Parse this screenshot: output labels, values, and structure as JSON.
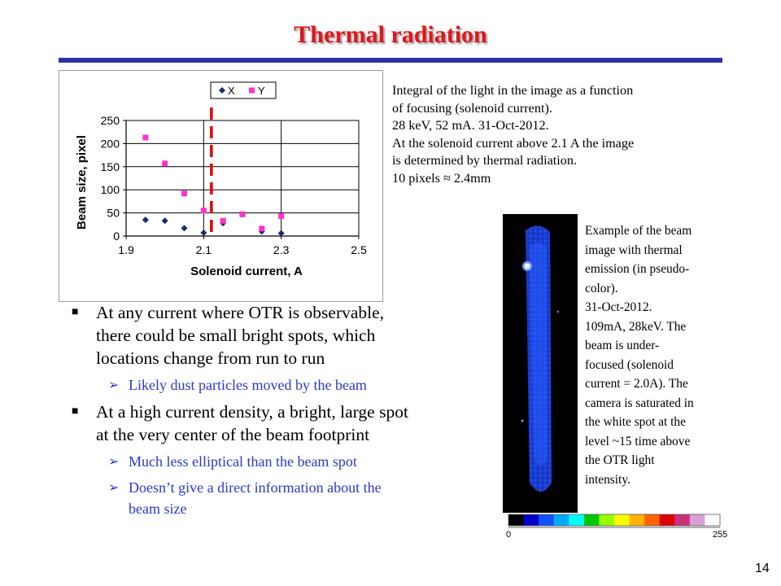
{
  "title": "Thermal radiation",
  "page_number": "14",
  "caption_chart": [
    "Integral of the light in the image as a function",
    "of focusing (solenoid current).",
    "28 keV, 52 mA. 31-Oct-2012.",
    "At the solenoid current above 2.1 A the image",
    "is determined by thermal radiation.",
    "10 pixels ≈ 2.4mm"
  ],
  "caption_image": [
    "Example of the beam",
    "image with thermal",
    "emission (in pseudo-",
    "color).",
    "31-Oct-2012.",
    "109mA, 28keV. The",
    "beam is under-",
    "focused (solenoid",
    "current = 2.0A). The",
    "camera is saturated in",
    "the white spot at the",
    "level ~15 time above",
    "the OTR light",
    "intensity."
  ],
  "colorbar": {
    "min_label": "0",
    "max_label": "255",
    "colors": [
      "#000000",
      "#0000c8",
      "#1450ff",
      "#00aaff",
      "#00ffff",
      "#00c800",
      "#96ff00",
      "#ffff00",
      "#ffb400",
      "#ff6400",
      "#e10000",
      "#c8327d",
      "#d7a0d7",
      "#ffffff"
    ]
  },
  "bullets": [
    {
      "level": 1,
      "text": [
        "At any current where OTR is observable,",
        "there could be small bright spots, which",
        "locations change from run to run"
      ]
    },
    {
      "level": 2,
      "text": [
        "Likely dust particles moved by the beam"
      ]
    },
    {
      "level": 1,
      "text": [
        "At a high current density, a bright, large spot",
        "at the very center of the beam footprint"
      ]
    },
    {
      "level": 2,
      "text": [
        "Much less elliptical than the beam spot"
      ]
    },
    {
      "level": 2,
      "text": [
        "Doesn’t give a direct information about the",
        "beam size"
      ]
    }
  ],
  "bullet_markers": {
    "level1": "■",
    "level2": "➢"
  },
  "colors": {
    "title": "#e0161b",
    "accent_bar": "#2a31a6",
    "sub_bullet": "#2a3ac8",
    "series_x": "#1a2a6c",
    "series_y": "#ff33cc",
    "threshold_line": "#e00000"
  },
  "chart_data": {
    "type": "scatter",
    "xlabel": "Solenoid current, A",
    "ylabel": "Beam size, pixel",
    "xlim": [
      1.9,
      2.5
    ],
    "ylim": [
      0,
      250
    ],
    "xticks": [
      "1.9",
      "2.1",
      "2.3",
      "2.5"
    ],
    "xtick_values": [
      1.9,
      2.1,
      2.3,
      2.5
    ],
    "yticks": [
      "0",
      "50",
      "100",
      "150",
      "200",
      "250"
    ],
    "ytick_values": [
      0,
      50,
      100,
      150,
      200,
      250
    ],
    "grid": true,
    "legend_position": "top-right",
    "threshold_x": 2.12,
    "series": [
      {
        "name": "X",
        "marker": "diamond",
        "color": "#1a2a6c",
        "x": [
          1.95,
          2.0,
          2.05,
          2.1,
          2.15,
          2.2,
          2.25,
          2.3
        ],
        "y": [
          35,
          33,
          17,
          7,
          28,
          47,
          10,
          6
        ]
      },
      {
        "name": "Y",
        "marker": "square",
        "color": "#ff33cc",
        "x": [
          1.95,
          2.0,
          2.05,
          2.1,
          2.15,
          2.2,
          2.25,
          2.3
        ],
        "y": [
          213,
          157,
          92,
          55,
          33,
          47,
          16,
          43
        ]
      }
    ]
  }
}
